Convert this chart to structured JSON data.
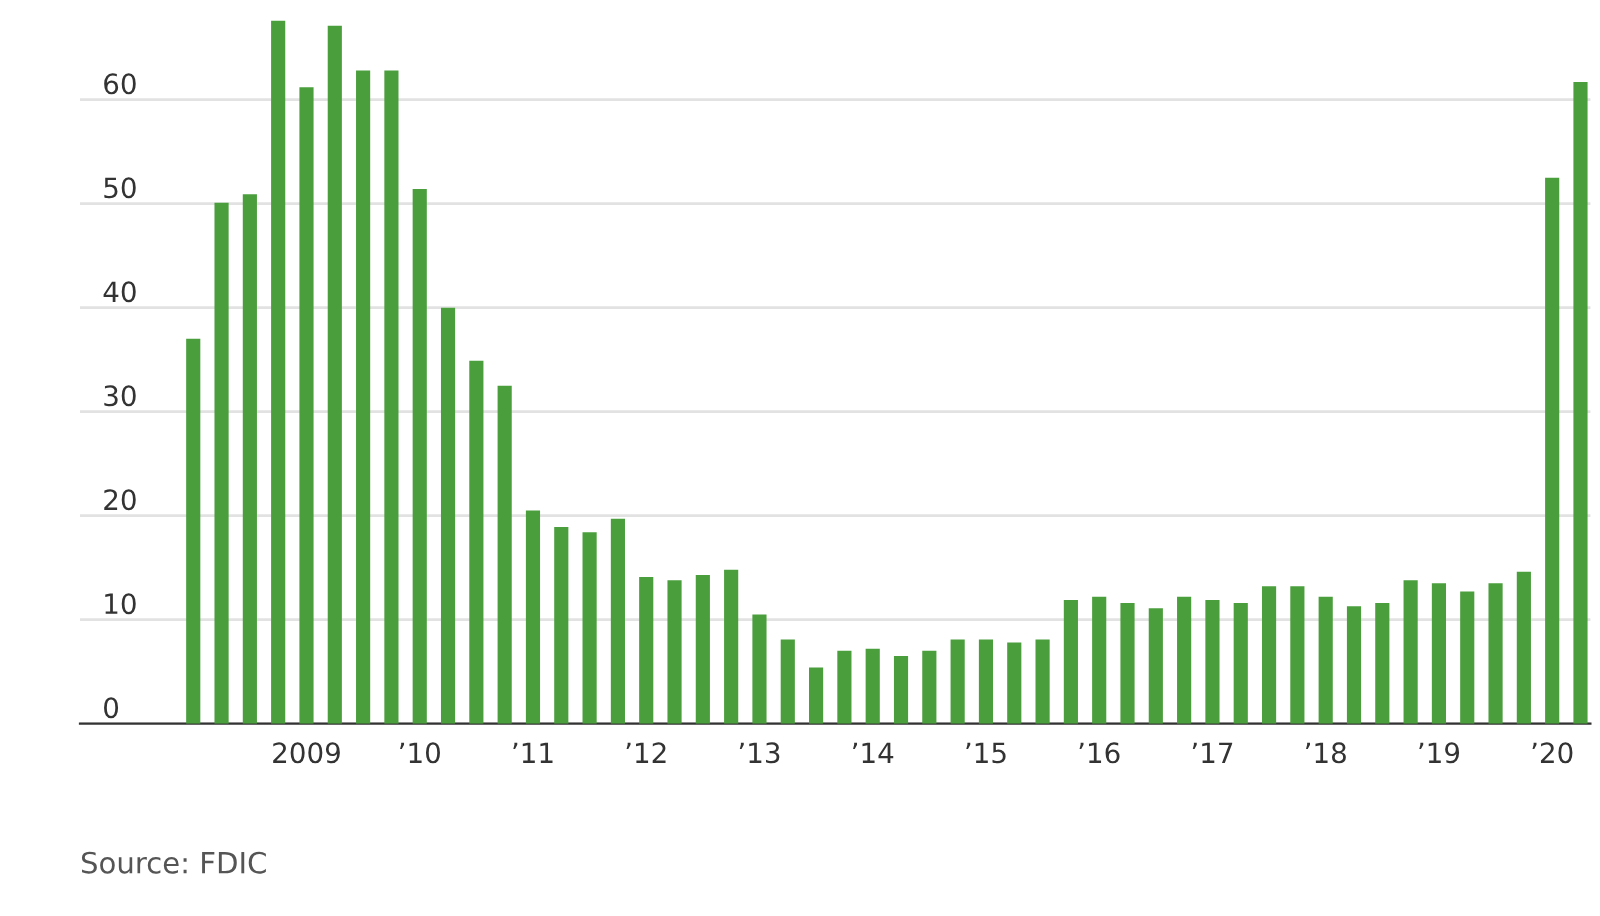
{
  "chart_data": {
    "type": "bar",
    "categories": [
      null,
      null,
      null,
      null,
      "2009",
      null,
      null,
      null,
      "’10",
      null,
      null,
      null,
      "’11",
      null,
      null,
      null,
      "’12",
      null,
      null,
      null,
      "’13",
      null,
      null,
      null,
      "’14",
      null,
      null,
      null,
      "’15",
      null,
      null,
      null,
      "’16",
      null,
      null,
      null,
      "’17",
      null,
      null,
      null,
      "’18",
      null,
      null,
      null,
      "’19",
      null,
      null,
      null,
      "’20",
      null
    ],
    "values": [
      37.0,
      50.1,
      50.9,
      67.6,
      61.2,
      67.1,
      62.8,
      62.8,
      51.4,
      40.0,
      34.9,
      32.5,
      20.5,
      18.9,
      18.4,
      19.7,
      14.1,
      13.8,
      14.3,
      14.8,
      10.5,
      8.1,
      5.4,
      7.0,
      7.2,
      6.5,
      7.0,
      8.1,
      8.1,
      7.8,
      8.1,
      11.9,
      12.2,
      11.6,
      11.1,
      12.2,
      11.9,
      11.6,
      13.2,
      13.2,
      12.2,
      11.3,
      11.6,
      13.8,
      13.5,
      12.7,
      13.5,
      14.6,
      52.5,
      61.7
    ],
    "color": "#4a9e3c",
    "ylim": [
      0,
      68
    ],
    "yticks": [
      0,
      10,
      20,
      30,
      40,
      50,
      60
    ],
    "grid": "y",
    "legend": false,
    "annotations": [
      "Source: FDIC"
    ]
  }
}
